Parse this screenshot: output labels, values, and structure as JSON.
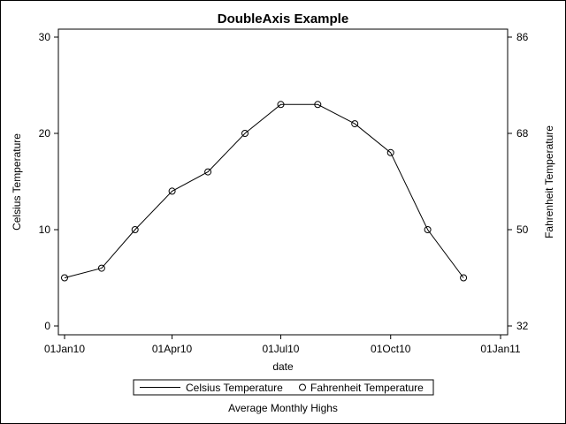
{
  "chart_data": {
    "type": "line",
    "title": "DoubleAxis Example",
    "xlabel": "date",
    "ylabel": "Celsius Temperature",
    "y2label": "Fahrenheit Temperature",
    "footnote": "Average Monthly Highs",
    "x_ticks": [
      "01Jan10",
      "01Apr10",
      "01Jul10",
      "01Oct10",
      "01Jan11"
    ],
    "y_ticks": [
      "0",
      "10",
      "20",
      "30"
    ],
    "y2_ticks": [
      "32",
      "50",
      "68",
      "86"
    ],
    "ylim": [
      0,
      30
    ],
    "y2lim": [
      32,
      86
    ],
    "legend": {
      "placement": "bottom",
      "items": [
        "Celsius Temperature",
        "Fahrenheit Temperature"
      ]
    },
    "x": [
      "2010-01-01",
      "2010-02-01",
      "2010-03-01",
      "2010-04-01",
      "2010-05-01",
      "2010-06-01",
      "2010-07-01",
      "2010-08-01",
      "2010-09-01",
      "2010-10-01",
      "2010-11-01",
      "2010-12-01"
    ],
    "series": [
      {
        "name": "Celsius Temperature",
        "style": "line",
        "axis": "left",
        "values": [
          5,
          6,
          10,
          14,
          16,
          20,
          23,
          23,
          21,
          18,
          10,
          5
        ]
      },
      {
        "name": "Fahrenheit Temperature",
        "style": "marker",
        "axis": "right",
        "values": [
          41,
          42.8,
          50,
          57.2,
          60.8,
          68,
          73.4,
          73.4,
          69.8,
          64.4,
          50,
          41
        ]
      }
    ]
  }
}
